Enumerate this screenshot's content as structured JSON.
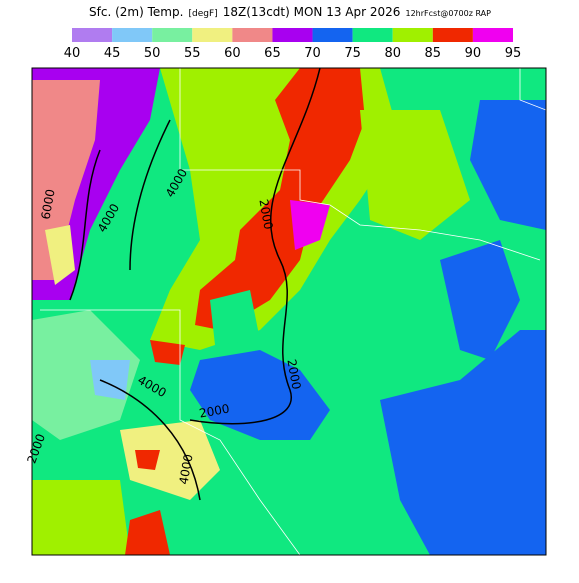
{
  "header": {
    "title_parts": [
      "Sfc. (2m) Temp.",
      "[degF]",
      "18Z(13cdt) MON 13 Apr 2026",
      "12hrFcst@0700z RAP"
    ]
  },
  "colorbar": {
    "ticks": [
      40,
      45,
      50,
      55,
      60,
      65,
      70,
      75,
      80,
      85,
      90,
      95
    ],
    "colors": [
      "#b07cf0",
      "#80c8f8",
      "#78f0a0",
      "#f0f080",
      "#f08888",
      "#a800f0",
      "#1464f0",
      "#10e880",
      "#a0f000",
      "#f02800",
      "#f000f0"
    ]
  },
  "contour_labels": [
    "6000",
    "4000",
    "4000",
    "2000",
    "2000",
    "2000",
    "4000",
    "4000",
    "2000"
  ]
}
